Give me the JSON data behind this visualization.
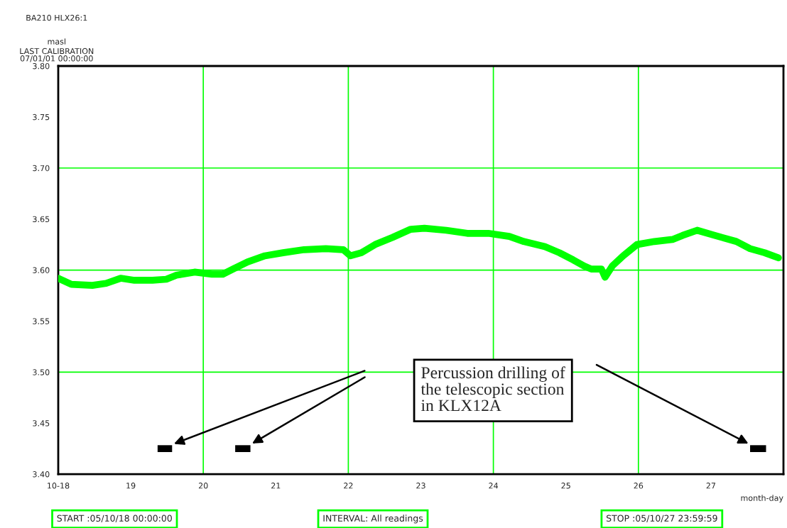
{
  "chart_data": {
    "type": "line",
    "title": "BA210 HLX26:1",
    "subtitle": "LAST CALIBRATION\n07/01/01 00:00:00",
    "ylabel": "masl",
    "xlabel": "month-day",
    "series": [
      {
        "color": "#00ff00",
        "x": [
          18.0,
          18.18,
          18.47,
          18.66,
          18.86,
          19.05,
          19.3,
          19.49,
          19.63,
          19.88,
          20.12,
          20.27,
          20.41,
          20.61,
          20.85,
          21.1,
          21.39,
          21.69,
          21.93,
          22.03,
          22.18,
          22.37,
          22.61,
          22.86,
          23.05,
          23.35,
          23.64,
          23.93,
          24.22,
          24.42,
          24.71,
          24.91,
          25.1,
          25.25,
          25.35,
          25.49,
          25.54,
          25.64,
          25.79,
          25.98,
          26.22,
          26.47,
          26.61,
          26.81,
          27.05,
          27.35,
          27.54,
          27.74,
          27.93
        ],
        "values": [
          3.592,
          3.586,
          3.585,
          3.587,
          3.592,
          3.59,
          3.59,
          3.591,
          3.595,
          3.598,
          3.596,
          3.596,
          3.601,
          3.608,
          3.614,
          3.617,
          3.62,
          3.621,
          3.62,
          3.614,
          3.617,
          3.625,
          3.632,
          3.64,
          3.641,
          3.639,
          3.636,
          3.636,
          3.633,
          3.628,
          3.623,
          3.617,
          3.61,
          3.604,
          3.601,
          3.601,
          3.593,
          3.604,
          3.614,
          3.625,
          3.628,
          3.63,
          3.634,
          3.639,
          3.634,
          3.628,
          3.621,
          3.617,
          3.612
        ]
      },
      {
        "color": "#000000",
        "x": [
          19.37,
          19.57
        ],
        "values": [
          3.425,
          3.425
        ]
      },
      {
        "color": "#000000",
        "x": [
          20.44,
          20.65
        ],
        "values": [
          3.425,
          3.425
        ]
      },
      {
        "color": "#000000",
        "x": [
          27.54,
          27.76
        ],
        "values": [
          3.425,
          3.425
        ]
      }
    ],
    "xlim": [
      18,
      28
    ],
    "xticks": [
      {
        "value": 18,
        "label": "10-18"
      },
      19,
      20,
      21,
      22,
      23,
      24,
      25,
      26,
      27
    ],
    "ylim": [
      3.4,
      3.8
    ],
    "yticks": [
      {
        "value": 3.4,
        "label": "3.40"
      },
      {
        "value": 3.45,
        "label": "3.45"
      },
      {
        "value": 3.5,
        "label": "3.50"
      },
      {
        "value": 3.55,
        "label": "3.55"
      },
      {
        "value": 3.6,
        "label": "3.60"
      },
      {
        "value": 3.65,
        "label": "3.65"
      },
      {
        "value": 3.7,
        "label": "3.70"
      },
      {
        "value": 3.75,
        "label": "3.75"
      },
      {
        "value": 3.8,
        "label": "3.80"
      }
    ],
    "ref_lines": [
      {
        "axis": "x",
        "value": 20,
        "color": "#00ff00"
      },
      {
        "axis": "x",
        "value": 22,
        "color": "#00ff00"
      },
      {
        "axis": "x",
        "value": 24,
        "color": "#00ff00"
      },
      {
        "axis": "x",
        "value": 26,
        "color": "#00ff00"
      },
      {
        "axis": "y",
        "value": 3.5,
        "color": "#00ff00"
      },
      {
        "axis": "y",
        "value": 3.6,
        "color": "#00ff00"
      },
      {
        "axis": "y",
        "value": 3.7,
        "color": "#00ff00"
      }
    ],
    "annotations": [
      "Percussion drilling of\nthe telescopic section\nin KLX12A",
      "START :05/10/18 00:00:00",
      "INTERVAL: All readings",
      "STOP :05/10/27 23:59:59"
    ],
    "line_style": "solid",
    "marker": "none"
  }
}
